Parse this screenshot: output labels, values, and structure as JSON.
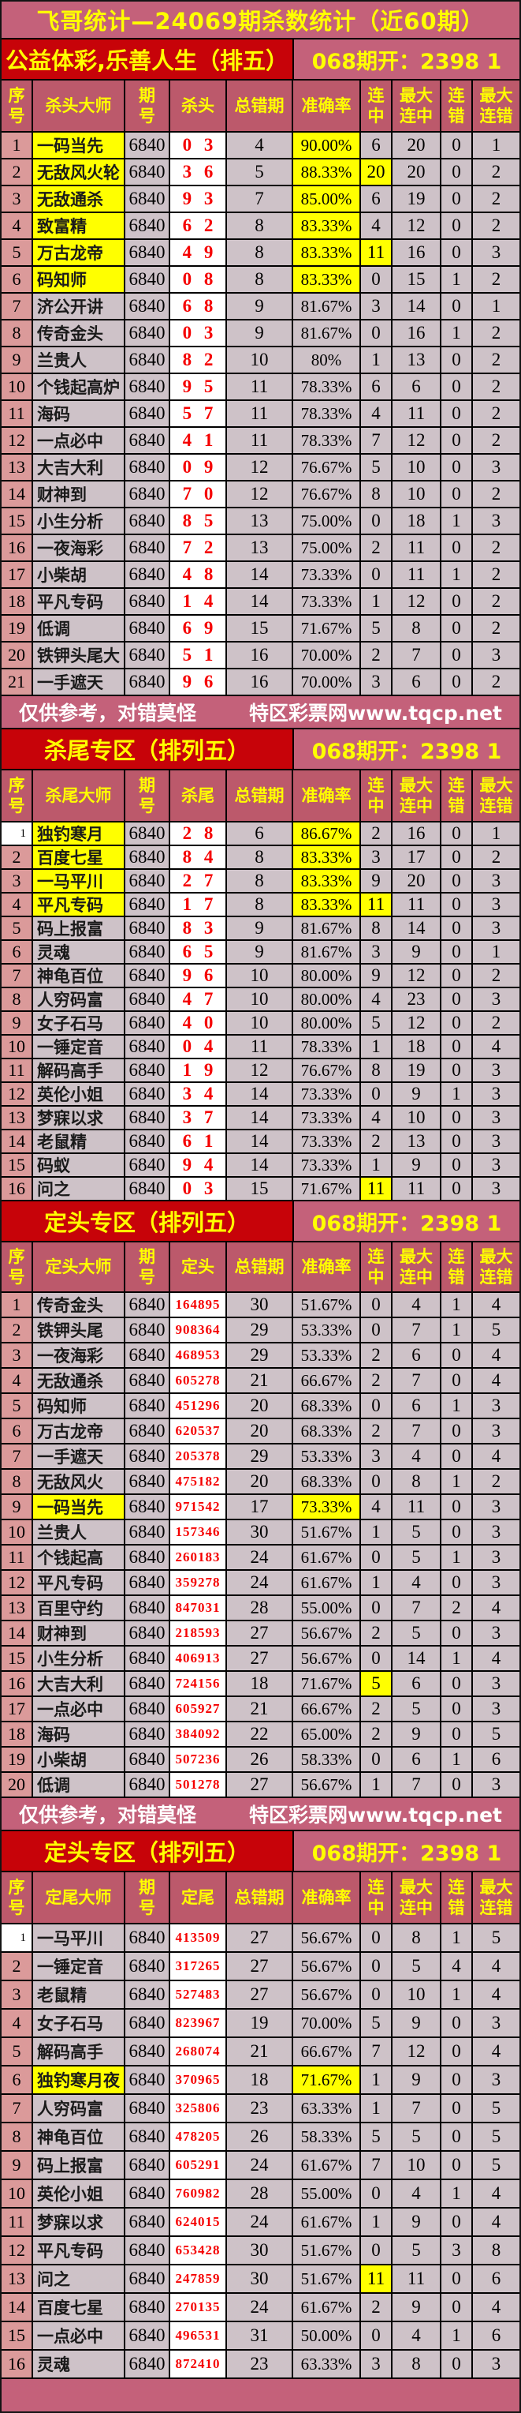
{
  "page": {
    "title": "飞哥统计—24069期杀数统计（近60期）",
    "disclaimer": "仅供参考，对错莫怪",
    "site": "特区彩票网www.tqcp.net"
  },
  "colors": {
    "banner_pink": "#C4617A",
    "section_red": "#C70309",
    "header_rose": "#BC596B",
    "index_salmon": "#DB9A9A",
    "row_gray": "#CEC2C8",
    "highlight_yellow": "#FFFF00",
    "kill_number_red": "#F50000",
    "footer_text_white": "#FFFFFF"
  },
  "sections": [
    {
      "title": "公益体彩,乐善人生（排五）",
      "draw": "068期开：2398 1",
      "columns": [
        "序\n号",
        "杀头大师",
        "期\n号",
        "杀头",
        "总错期",
        "准确率",
        "连\n中",
        "最大\n连中",
        "连\n错",
        "最大\n连错"
      ],
      "yellow_master": [
        1,
        2,
        3,
        4,
        5,
        6
      ],
      "yellow_rate": [
        1,
        2,
        3,
        4,
        5,
        6
      ],
      "yellow_hit": [
        2,
        5
      ],
      "white_no": [],
      "rows": [
        [
          "1",
          "一码当先",
          "6840",
          "0 3",
          "4",
          "90.00%",
          "6",
          "20",
          "0",
          "1"
        ],
        [
          "2",
          "无敌风火轮",
          "6840",
          "3 6",
          "5",
          "88.33%",
          "20",
          "20",
          "0",
          "2"
        ],
        [
          "3",
          "无敌通杀",
          "6840",
          "9 3",
          "7",
          "85.00%",
          "6",
          "19",
          "0",
          "2"
        ],
        [
          "4",
          "致富精",
          "6840",
          "6 2",
          "8",
          "83.33%",
          "4",
          "12",
          "0",
          "2"
        ],
        [
          "5",
          "万古龙帝",
          "6840",
          "4 9",
          "8",
          "83.33%",
          "11",
          "16",
          "0",
          "3"
        ],
        [
          "6",
          "码知师",
          "6840",
          "0 8",
          "8",
          "83.33%",
          "0",
          "15",
          "1",
          "2"
        ],
        [
          "7",
          "济公开讲",
          "6840",
          "6 8",
          "9",
          "81.67%",
          "3",
          "14",
          "0",
          "1"
        ],
        [
          "8",
          "传奇金头",
          "6840",
          "0 3",
          "9",
          "81.67%",
          "0",
          "16",
          "1",
          "2"
        ],
        [
          "9",
          "兰贵人",
          "6840",
          "8 2",
          "10",
          "80%",
          "1",
          "13",
          "0",
          "2"
        ],
        [
          "10",
          "个钱起高炉",
          "6840",
          "9 5",
          "11",
          "78.33%",
          "6",
          "6",
          "0",
          "2"
        ],
        [
          "11",
          "海码",
          "6840",
          "5 7",
          "11",
          "78.33%",
          "4",
          "11",
          "0",
          "2"
        ],
        [
          "12",
          "一点必中",
          "6840",
          "4 1",
          "11",
          "78.33%",
          "7",
          "12",
          "0",
          "2"
        ],
        [
          "13",
          "大吉大利",
          "6840",
          "0 9",
          "12",
          "76.67%",
          "5",
          "10",
          "0",
          "3"
        ],
        [
          "14",
          "财神到",
          "6840",
          "7 0",
          "12",
          "76.67%",
          "8",
          "10",
          "0",
          "2"
        ],
        [
          "15",
          "小生分析",
          "6840",
          "8 5",
          "13",
          "75.00%",
          "0",
          "18",
          "1",
          "3"
        ],
        [
          "16",
          "一夜海彩",
          "6840",
          "7 2",
          "13",
          "75.00%",
          "2",
          "11",
          "0",
          "2"
        ],
        [
          "17",
          "小柴胡",
          "6840",
          "4 8",
          "14",
          "73.33%",
          "0",
          "11",
          "1",
          "2"
        ],
        [
          "18",
          "平凡专码",
          "6840",
          "1 4",
          "14",
          "73.33%",
          "1",
          "12",
          "0",
          "2"
        ],
        [
          "19",
          "低调",
          "6840",
          "6 9",
          "15",
          "71.67%",
          "5",
          "8",
          "0",
          "2"
        ],
        [
          "20",
          "铁钾头尾大",
          "6840",
          "5 1",
          "16",
          "70.00%",
          "2",
          "7",
          "0",
          "3"
        ],
        [
          "21",
          "一手遮天",
          "6840",
          "9 6",
          "16",
          "70.00%",
          "3",
          "6",
          "0",
          "2"
        ]
      ]
    },
    {
      "title": "杀尾专区（排列五）",
      "draw": "068期开：2398 1",
      "columns": [
        "序\n号",
        "杀尾大师",
        "期\n号",
        "杀尾",
        "总错期",
        "准确率",
        "连\n中",
        "最大\n连中",
        "连\n错",
        "最大\n连错"
      ],
      "yellow_master": [
        1,
        2,
        3,
        4
      ],
      "yellow_rate": [
        1,
        2,
        3,
        4
      ],
      "yellow_hit": [
        4,
        16
      ],
      "white_no": [
        1
      ],
      "rows": [
        [
          "1",
          "独钓寒月",
          "6840",
          "2 8",
          "6",
          "86.67%",
          "2",
          "16",
          "0",
          "1"
        ],
        [
          "2",
          "百度七星",
          "6840",
          "8 4",
          "8",
          "83.33%",
          "3",
          "17",
          "0",
          "2"
        ],
        [
          "3",
          "一马平川",
          "6840",
          "2 7",
          "8",
          "83.33%",
          "9",
          "20",
          "0",
          "3"
        ],
        [
          "4",
          "平凡专码",
          "6840",
          "1 7",
          "8",
          "83.33%",
          "11",
          "11",
          "0",
          "3"
        ],
        [
          "5",
          "码上报富",
          "6840",
          "8 3",
          "9",
          "81.67%",
          "8",
          "14",
          "0",
          "3"
        ],
        [
          "6",
          "灵魂",
          "6840",
          "6 5",
          "9",
          "81.67%",
          "3",
          "9",
          "0",
          "1"
        ],
        [
          "7",
          "神龟百位",
          "6840",
          "9 6",
          "10",
          "80.00%",
          "9",
          "12",
          "0",
          "2"
        ],
        [
          "8",
          "人穷码富",
          "6840",
          "4 7",
          "10",
          "80.00%",
          "4",
          "23",
          "0",
          "3"
        ],
        [
          "9",
          "女子石马",
          "6840",
          "4 0",
          "10",
          "80.00%",
          "5",
          "12",
          "0",
          "2"
        ],
        [
          "10",
          "一锤定音",
          "6840",
          "0 4",
          "11",
          "78.33%",
          "1",
          "18",
          "0",
          "4"
        ],
        [
          "11",
          "解码高手",
          "6840",
          "1 9",
          "12",
          "76.67%",
          "8",
          "19",
          "0",
          "3"
        ],
        [
          "12",
          "英伦小姐",
          "6840",
          "3 4",
          "14",
          "73.33%",
          "0",
          "9",
          "1",
          "3"
        ],
        [
          "13",
          "梦寐以求",
          "6840",
          "3 7",
          "14",
          "73.33%",
          "4",
          "10",
          "0",
          "3"
        ],
        [
          "14",
          "老鼠精",
          "6840",
          "6 1",
          "14",
          "73.33%",
          "2",
          "13",
          "0",
          "3"
        ],
        [
          "15",
          "码蚁",
          "6840",
          "9 4",
          "14",
          "73.33%",
          "1",
          "9",
          "0",
          "3"
        ],
        [
          "16",
          "问之",
          "6840",
          "0 3",
          "15",
          "71.67%",
          "11",
          "11",
          "0",
          "3"
        ]
      ]
    },
    {
      "title": "定头专区（排列五）",
      "draw": "068期开：2398 1",
      "columns": [
        "序\n号",
        "定头大师",
        "期\n号",
        "定头",
        "总错期",
        "准确率",
        "连\n中",
        "最大\n连中",
        "连\n错",
        "最大\n连错"
      ],
      "yellow_master": [
        9
      ],
      "yellow_rate": [
        9
      ],
      "yellow_hit": [
        16
      ],
      "white_no": [],
      "rows": [
        [
          "1",
          "传奇金头",
          "6840",
          "164895",
          "30",
          "51.67%",
          "0",
          "4",
          "1",
          "4"
        ],
        [
          "2",
          "铁钾头尾",
          "6840",
          "908364",
          "29",
          "53.33%",
          "0",
          "7",
          "1",
          "5"
        ],
        [
          "3",
          "一夜海彩",
          "6840",
          "468953",
          "29",
          "53.33%",
          "2",
          "6",
          "0",
          "4"
        ],
        [
          "4",
          "无敌通杀",
          "6840",
          "605278",
          "21",
          "66.67%",
          "2",
          "7",
          "0",
          "4"
        ],
        [
          "5",
          "码知师",
          "6840",
          "451296",
          "20",
          "68.33%",
          "0",
          "6",
          "1",
          "3"
        ],
        [
          "6",
          "万古龙帝",
          "6840",
          "620537",
          "20",
          "68.33%",
          "2",
          "7",
          "0",
          "3"
        ],
        [
          "7",
          "一手遮天",
          "6840",
          "205378",
          "29",
          "53.33%",
          "3",
          "4",
          "0",
          "4"
        ],
        [
          "8",
          "无敌风火",
          "6840",
          "475182",
          "20",
          "68.33%",
          "0",
          "8",
          "1",
          "2"
        ],
        [
          "9",
          "一码当先",
          "6840",
          "971542",
          "17",
          "73.33%",
          "4",
          "11",
          "0",
          "3"
        ],
        [
          "10",
          "兰贵人",
          "6840",
          "157346",
          "30",
          "51.67%",
          "1",
          "5",
          "0",
          "3"
        ],
        [
          "11",
          "个钱起高",
          "6840",
          "260183",
          "24",
          "61.67%",
          "0",
          "5",
          "1",
          "3"
        ],
        [
          "12",
          "平凡专码",
          "6840",
          "359278",
          "24",
          "61.67%",
          "1",
          "4",
          "0",
          "3"
        ],
        [
          "13",
          "百里守约",
          "6840",
          "847031",
          "28",
          "55.00%",
          "0",
          "7",
          "2",
          "4"
        ],
        [
          "14",
          "财神到",
          "6840",
          "218593",
          "27",
          "56.67%",
          "2",
          "5",
          "0",
          "3"
        ],
        [
          "15",
          "小生分析",
          "6840",
          "406913",
          "27",
          "56.67%",
          "0",
          "14",
          "1",
          "4"
        ],
        [
          "16",
          "大吉大利",
          "6840",
          "724156",
          "18",
          "71.67%",
          "5",
          "6",
          "0",
          "3"
        ],
        [
          "17",
          "一点必中",
          "6840",
          "605927",
          "21",
          "66.67%",
          "2",
          "5",
          "0",
          "3"
        ],
        [
          "18",
          "海码",
          "6840",
          "384092",
          "22",
          "65.00%",
          "2",
          "9",
          "0",
          "5"
        ],
        [
          "19",
          "小柴胡",
          "6840",
          "507236",
          "26",
          "58.33%",
          "0",
          "6",
          "1",
          "6"
        ],
        [
          "20",
          "低调",
          "6840",
          "501278",
          "27",
          "56.67%",
          "1",
          "7",
          "0",
          "3"
        ]
      ]
    },
    {
      "title": "定头专区（排列五）",
      "draw": "068期开：2398 1",
      "columns": [
        "序\n号",
        "定尾大师",
        "期\n号",
        "定尾",
        "总错期",
        "准确率",
        "连\n中",
        "最大\n连中",
        "连\n错",
        "最大\n连错"
      ],
      "yellow_master": [
        6
      ],
      "yellow_rate": [
        6
      ],
      "yellow_hit": [
        13
      ],
      "white_no": [
        1
      ],
      "rows": [
        [
          "1",
          "一马平川",
          "6840",
          "413509",
          "27",
          "56.67%",
          "0",
          "8",
          "1",
          "5"
        ],
        [
          "2",
          "一锤定音",
          "6840",
          "317265",
          "27",
          "56.67%",
          "0",
          "5",
          "4",
          "4"
        ],
        [
          "3",
          "老鼠精",
          "6840",
          "527483",
          "27",
          "56.67%",
          "0",
          "10",
          "1",
          "4"
        ],
        [
          "4",
          "女子石马",
          "6840",
          "823967",
          "19",
          "70.00%",
          "5",
          "9",
          "0",
          "3"
        ],
        [
          "5",
          "解码高手",
          "6840",
          "268074",
          "21",
          "66.67%",
          "7",
          "12",
          "0",
          "4"
        ],
        [
          "6",
          "独钓寒月夜",
          "6840",
          "370965",
          "18",
          "71.67%",
          "1",
          "9",
          "0",
          "3"
        ],
        [
          "7",
          "人穷码富",
          "6840",
          "325806",
          "23",
          "63.33%",
          "1",
          "7",
          "0",
          "5"
        ],
        [
          "8",
          "神龟百位",
          "6840",
          "478205",
          "26",
          "58.33%",
          "5",
          "5",
          "0",
          "5"
        ],
        [
          "9",
          "码上报富",
          "6840",
          "605291",
          "24",
          "61.67%",
          "7",
          "10",
          "0",
          "5"
        ],
        [
          "10",
          "英伦小姐",
          "6840",
          "760982",
          "28",
          "55.00%",
          "0",
          "4",
          "1",
          "4"
        ],
        [
          "11",
          "梦寐以求",
          "6840",
          "624015",
          "24",
          "61.67%",
          "1",
          "9",
          "0",
          "4"
        ],
        [
          "12",
          "平凡专码",
          "6840",
          "653428",
          "30",
          "51.67%",
          "0",
          "5",
          "3",
          "8"
        ],
        [
          "13",
          "问之",
          "6840",
          "247859",
          "30",
          "51.67%",
          "11",
          "11",
          "0",
          "6"
        ],
        [
          "14",
          "百度七星",
          "6840",
          "270135",
          "24",
          "61.67%",
          "2",
          "9",
          "0",
          "4"
        ],
        [
          "15",
          "一点必中",
          "6840",
          "496531",
          "31",
          "50.00%",
          "0",
          "4",
          "1",
          "6"
        ],
        [
          "16",
          "灵魂",
          "6840",
          "872410",
          "23",
          "63.33%",
          "3",
          "8",
          "0",
          "3"
        ]
      ]
    }
  ]
}
